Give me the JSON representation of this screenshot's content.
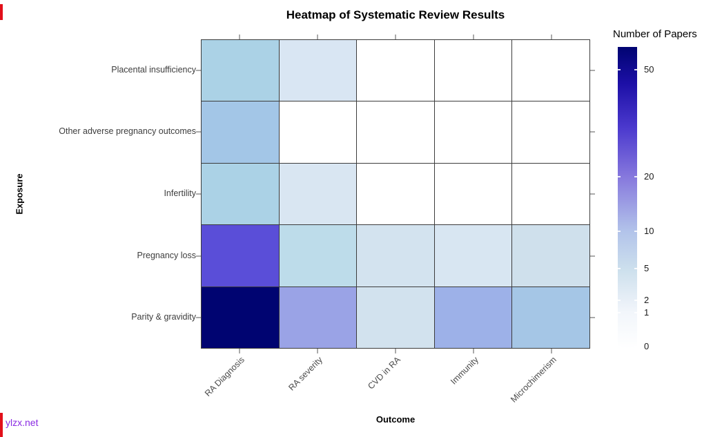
{
  "watermark": {
    "text": "ylzx.net",
    "color": "#8a2be2"
  },
  "chart_data": {
    "type": "heatmap",
    "title": "Heatmap of Systematic Review Results",
    "xlabel": "Outcome",
    "ylabel": "Exposure",
    "x_categories": [
      "RA Diagnosis",
      "RA severity",
      "CVD in RA",
      "Immunity",
      "Microchimerism"
    ],
    "y_categories": [
      "Placental insufficiency",
      "Other adverse pregnancy outcomes",
      "Infertility",
      "Pregnancy loss",
      "Parity & gravidity"
    ],
    "values": [
      [
        6,
        2,
        0,
        0,
        0
      ],
      [
        9,
        0,
        0,
        0,
        0
      ],
      [
        6,
        2,
        0,
        0,
        0
      ],
      [
        27,
        5,
        3,
        2,
        4
      ],
      [
        58,
        15,
        3,
        13,
        10
      ]
    ],
    "cell_colors": [
      [
        "#abd2e6",
        "#d9e6f3",
        "#ffffff",
        "#ffffff",
        "#ffffff"
      ],
      [
        "#a3c6e7",
        "#ffffff",
        "#ffffff",
        "#ffffff",
        "#ffffff"
      ],
      [
        "#abd2e6",
        "#d9e6f2",
        "#ffffff",
        "#ffffff",
        "#ffffff"
      ],
      [
        "#5a4ed8",
        "#bddcea",
        "#d3e3ef",
        "#d8e6f2",
        "#cfe0ec"
      ],
      [
        "#000471",
        "#9aa3e6",
        "#d2e2ee",
        "#9db1e8",
        "#a5c6e6"
      ]
    ],
    "grid_line_color": "#3b3b3b",
    "legend": {
      "title": "Number of Papers",
      "scale": "sqrt",
      "min_value": 0,
      "max_value": 58,
      "min_color": "#ffffff",
      "max_color": "#000471",
      "position": "right",
      "ticks": [
        {
          "label": "50",
          "pos": 0.924
        },
        {
          "label": "20",
          "pos": 0.57
        },
        {
          "label": "10",
          "pos": 0.389
        },
        {
          "label": "5",
          "pos": 0.265
        },
        {
          "label": "2",
          "pos": 0.16
        },
        {
          "label": "1",
          "pos": 0.119
        },
        {
          "label": "0",
          "pos": 0.007
        }
      ]
    }
  }
}
